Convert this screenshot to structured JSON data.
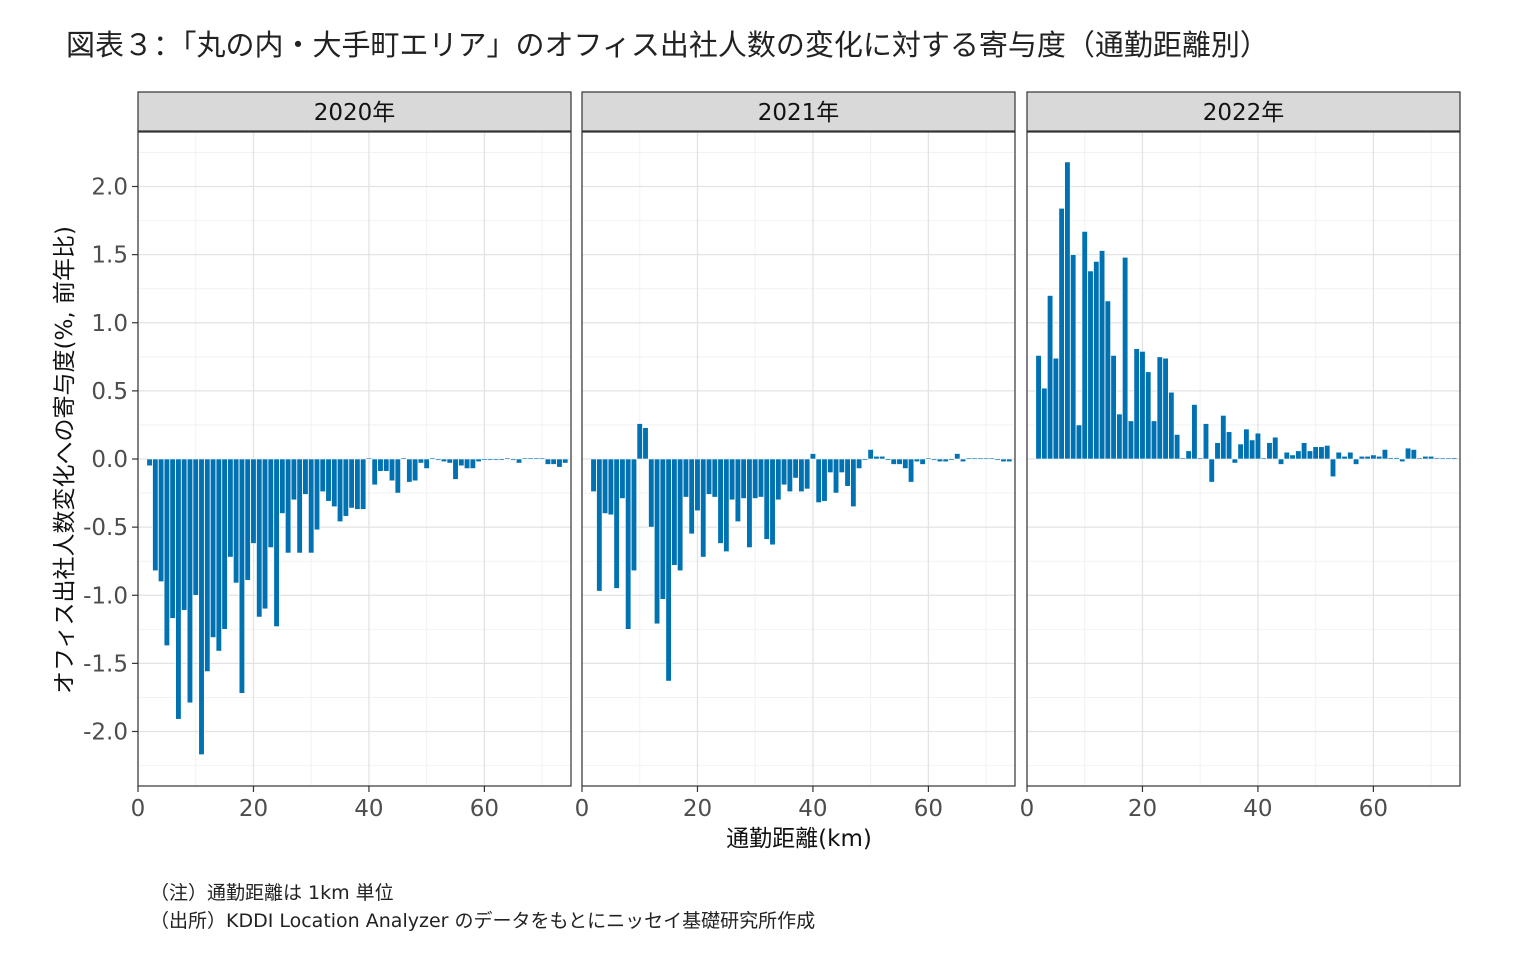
{
  "figure": {
    "title": "図表３：「丸の内・大手町エリア」のオフィス出社人数の変化に対する寄与度（通勤距離別）",
    "note": "（注）通勤距離は 1km 単位",
    "source": "（出所）KDDI Location Analyzer のデータをもとにニッセイ基礎研究所作成"
  },
  "chart_data": {
    "type": "bar",
    "xlabel": "通勤距離(km)",
    "ylabel": "オフィス出社人数変化への寄与度(%, 前年比)",
    "xlim": [
      0,
      75
    ],
    "ylim": [
      -2.4,
      2.4
    ],
    "x_ticks": [
      0,
      20,
      40,
      60
    ],
    "y_ticks": [
      -2.0,
      -1.5,
      -1.0,
      -0.5,
      0.0,
      0.5,
      1.0,
      1.5,
      2.0
    ],
    "y_tick_labels": [
      "-2.0",
      "-1.5",
      "-1.0",
      "-0.5",
      "0.0",
      "0.5",
      "1.0",
      "1.5",
      "2.0"
    ],
    "grid": true,
    "bar_color": "#0072b2",
    "panels": [
      {
        "label": "2020年",
        "x": [
          2,
          3,
          4,
          5,
          6,
          7,
          8,
          9,
          10,
          11,
          12,
          13,
          14,
          15,
          16,
          17,
          18,
          19,
          20,
          21,
          22,
          23,
          24,
          25,
          26,
          27,
          28,
          29,
          30,
          31,
          32,
          33,
          34,
          35,
          36,
          37,
          38,
          39,
          40,
          41,
          42,
          43,
          44,
          45,
          46,
          47,
          48,
          49,
          50,
          51,
          52,
          53,
          54,
          55,
          56,
          57,
          58,
          59,
          60,
          61,
          62,
          63,
          64,
          65,
          66,
          67,
          68,
          69,
          70,
          71,
          72,
          73,
          74
        ],
        "values": [
          -0.05,
          -0.82,
          -0.9,
          -1.37,
          -1.17,
          -1.91,
          -1.11,
          -1.79,
          -1.0,
          -2.17,
          -1.56,
          -1.31,
          -1.41,
          -1.25,
          -0.72,
          -0.91,
          -1.72,
          -0.89,
          -0.62,
          -1.16,
          -1.1,
          -0.65,
          -1.23,
          -0.4,
          -0.69,
          -0.3,
          -0.69,
          -0.26,
          -0.69,
          -0.52,
          -0.24,
          -0.31,
          -0.35,
          -0.46,
          -0.42,
          -0.36,
          -0.37,
          -0.37,
          0.0,
          -0.19,
          -0.09,
          -0.09,
          -0.16,
          -0.25,
          -0.0,
          -0.17,
          -0.16,
          -0.03,
          -0.07,
          -0.0,
          -0.01,
          -0.02,
          -0.03,
          -0.15,
          -0.05,
          -0.07,
          -0.07,
          -0.02,
          -0.01,
          -0.01,
          -0.01,
          -0.01,
          -0.0,
          -0.01,
          -0.03,
          -0.0,
          -0.0,
          -0.0,
          -0.0,
          -0.04,
          -0.04,
          -0.06,
          -0.03
        ]
      },
      {
        "label": "2021年",
        "x": [
          2,
          3,
          4,
          5,
          6,
          7,
          8,
          9,
          10,
          11,
          12,
          13,
          14,
          15,
          16,
          17,
          18,
          19,
          20,
          21,
          22,
          23,
          24,
          25,
          26,
          27,
          28,
          29,
          30,
          31,
          32,
          33,
          34,
          35,
          36,
          37,
          38,
          39,
          40,
          41,
          42,
          43,
          44,
          45,
          46,
          47,
          48,
          49,
          50,
          51,
          52,
          53,
          54,
          55,
          56,
          57,
          58,
          59,
          60,
          61,
          62,
          63,
          64,
          65,
          66,
          67,
          68,
          69,
          70,
          71,
          72,
          73,
          74
        ],
        "values": [
          -0.24,
          -0.97,
          -0.4,
          -0.41,
          -0.95,
          -0.29,
          -1.25,
          -0.82,
          0.26,
          0.23,
          -0.5,
          -1.21,
          -1.03,
          -1.63,
          -0.78,
          -0.82,
          -0.28,
          -0.55,
          -0.38,
          -0.72,
          -0.26,
          -0.28,
          -0.62,
          -0.68,
          -0.3,
          -0.46,
          -0.29,
          -0.65,
          -0.29,
          -0.28,
          -0.59,
          -0.63,
          -0.3,
          -0.19,
          -0.24,
          -0.14,
          -0.24,
          -0.22,
          0.04,
          -0.32,
          -0.31,
          -0.1,
          -0.25,
          -0.1,
          -0.2,
          -0.35,
          -0.07,
          -0.01,
          0.07,
          0.02,
          0.02,
          -0.01,
          -0.04,
          -0.04,
          -0.07,
          -0.17,
          -0.02,
          -0.04,
          0.0,
          -0.01,
          -0.02,
          -0.02,
          -0.01,
          0.04,
          -0.02,
          -0.0,
          -0.0,
          0.0,
          0.0,
          0.0,
          -0.01,
          -0.02,
          -0.02
        ]
      },
      {
        "label": "2022年",
        "x": [
          2,
          3,
          4,
          5,
          6,
          7,
          8,
          9,
          10,
          11,
          12,
          13,
          14,
          15,
          16,
          17,
          18,
          19,
          20,
          21,
          22,
          23,
          24,
          25,
          26,
          27,
          28,
          29,
          30,
          31,
          32,
          33,
          34,
          35,
          36,
          37,
          38,
          39,
          40,
          41,
          42,
          43,
          44,
          45,
          46,
          47,
          48,
          49,
          50,
          51,
          52,
          53,
          54,
          55,
          56,
          57,
          58,
          59,
          60,
          61,
          62,
          63,
          64,
          65,
          66,
          67,
          68,
          69,
          70,
          71,
          72,
          73,
          74
        ],
        "values": [
          0.76,
          0.52,
          1.2,
          0.74,
          1.84,
          2.18,
          1.5,
          0.25,
          1.67,
          1.38,
          1.45,
          1.53,
          1.16,
          0.76,
          0.33,
          1.48,
          0.28,
          0.81,
          0.79,
          0.64,
          0.28,
          0.75,
          0.74,
          0.49,
          0.18,
          0.0,
          0.06,
          0.4,
          0.0,
          0.26,
          -0.17,
          0.12,
          0.32,
          0.2,
          -0.03,
          0.11,
          0.22,
          0.14,
          0.19,
          0.0,
          0.12,
          0.16,
          -0.04,
          0.05,
          0.03,
          0.06,
          0.12,
          0.06,
          0.09,
          0.09,
          0.1,
          -0.13,
          0.05,
          0.02,
          0.05,
          -0.04,
          0.02,
          0.02,
          0.03,
          0.02,
          0.07,
          0.01,
          0.01,
          -0.02,
          0.08,
          0.07,
          0.0,
          0.02,
          0.02,
          0.0,
          0.0,
          0.0,
          0.01
        ]
      }
    ]
  }
}
